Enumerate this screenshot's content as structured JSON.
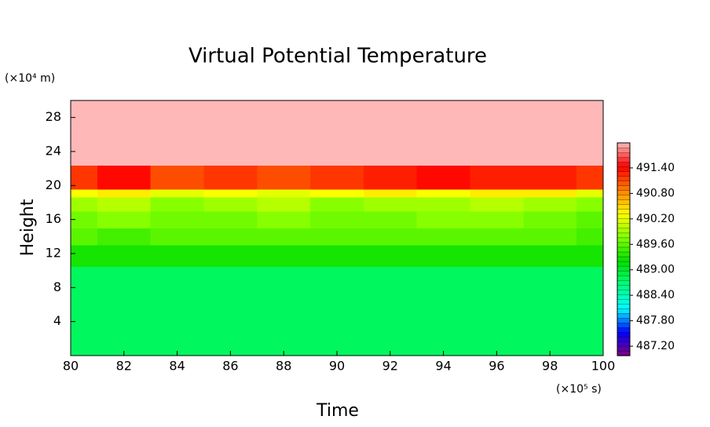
{
  "chart_data": {
    "type": "contour",
    "title": "Virtual Potential Temperature",
    "x_label": "Time",
    "y_label": "Height",
    "x_unit": "(×10⁵ s)",
    "y_unit": "(×10⁴ m)",
    "x": [
      80,
      82,
      84,
      86,
      88,
      90,
      92,
      94,
      96,
      98,
      100
    ],
    "y": [
      3,
      9,
      12,
      14,
      16,
      18,
      19.3,
      19.8,
      25
    ],
    "z": [
      [
        488.8,
        488.8,
        488.8,
        488.8,
        488.8,
        488.8,
        488.8,
        488.8,
        488.8,
        488.8,
        488.8
      ],
      [
        488.8,
        488.8,
        488.8,
        488.8,
        488.8,
        488.8,
        488.8,
        488.8,
        488.8,
        488.8,
        488.8
      ],
      [
        489.3,
        489.3,
        489.3,
        489.3,
        489.3,
        489.3,
        489.3,
        489.3,
        489.3,
        489.3,
        489.3
      ],
      [
        489.6,
        489.5,
        489.6,
        489.6,
        489.6,
        489.6,
        489.6,
        489.6,
        489.6,
        489.6,
        489.5
      ],
      [
        489.7,
        489.8,
        489.7,
        489.7,
        489.8,
        489.7,
        489.7,
        489.8,
        489.8,
        489.7,
        489.6
      ],
      [
        489.9,
        490.0,
        489.8,
        489.9,
        490.0,
        489.8,
        489.9,
        489.9,
        490.0,
        489.9,
        489.8
      ],
      [
        490.3,
        490.4,
        490.2,
        490.3,
        490.2,
        490.3,
        490.4,
        490.3,
        490.4,
        490.4,
        490.2
      ],
      [
        491.2,
        491.4,
        491.1,
        491.2,
        491.1,
        491.2,
        491.3,
        491.4,
        491.3,
        491.3,
        491.2
      ],
      [
        491.99,
        491.99,
        491.99,
        491.99,
        491.99,
        491.99,
        491.99,
        491.99,
        491.99,
        491.99,
        491.99
      ]
    ],
    "xlim": [
      80,
      100
    ],
    "ylim": [
      0,
      30
    ],
    "xticks": [
      80,
      82,
      84,
      86,
      88,
      90,
      92,
      94,
      96,
      98,
      100
    ],
    "yticks": [
      4,
      8,
      12,
      16,
      20,
      24,
      28
    ],
    "clim": [
      486.98,
      491.99
    ],
    "colors": [
      "#800080",
      "#0000ff",
      "#00ffff",
      "#00ff80",
      "#00e000",
      "#80ff00",
      "#ffff00",
      "#ff8000",
      "#ff0000",
      "#ffb8b8"
    ],
    "cticks": [
      {
        "value": 487.2,
        "label": "487.20"
      },
      {
        "value": 487.8,
        "label": "487.80"
      },
      {
        "value": 488.4,
        "label": "488.40"
      },
      {
        "value": 489.0,
        "label": "489.00"
      },
      {
        "value": 489.6,
        "label": "489.60"
      },
      {
        "value": 490.2,
        "label": "490.20"
      },
      {
        "value": 490.8,
        "label": "490.80"
      },
      {
        "value": 491.4,
        "label": "491.40"
      }
    ]
  }
}
